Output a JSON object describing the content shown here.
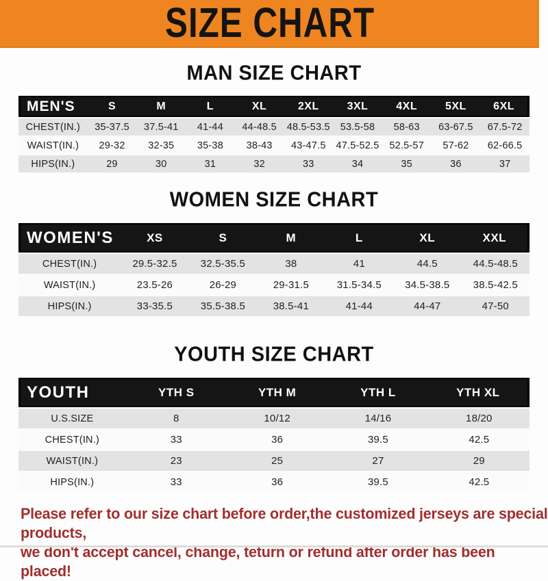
{
  "banner": {
    "title": "SIZE CHART"
  },
  "sections": [
    {
      "heading": "MAN SIZE CHART",
      "table": {
        "header_label": "MEN'S",
        "columns": [
          "S",
          "M",
          "L",
          "XL",
          "2XL",
          "3XL",
          "4XL",
          "5XL",
          "6XL"
        ],
        "rows": [
          {
            "label": "CHEST(IN.)",
            "values": [
              "35-37.5",
              "37.5-41",
              "41-44",
              "44-48.5",
              "48.5-53.5",
              "53.5-58",
              "58-63",
              "63-67.5",
              "67.5-72"
            ]
          },
          {
            "label": "WAIST(IN.)",
            "values": [
              "29-32",
              "32-35",
              "35-38",
              "38-43",
              "43-47.5",
              "47.5-52.5",
              "52.5-57",
              "57-62",
              "62-66.5"
            ]
          },
          {
            "label": "HIPS(IN.)",
            "values": [
              "29",
              "30",
              "31",
              "32",
              "33",
              "34",
              "35",
              "36",
              "37"
            ]
          }
        ]
      }
    },
    {
      "heading": "WOMEN SIZE CHART",
      "table": {
        "header_label": "WOMEN'S",
        "columns": [
          "XS",
          "S",
          "M",
          "L",
          "XL",
          "XXL"
        ],
        "rows": [
          {
            "label": "CHEST(IN.)",
            "values": [
              "29.5-32.5",
              "32.5-35.5",
              "38",
              "41",
              "44.5",
              "44.5-48.5"
            ]
          },
          {
            "label": "WAIST(IN.)",
            "values": [
              "23.5-26",
              "26-29",
              "29-31.5",
              "31.5-34.5",
              "34.5-38.5",
              "38.5-42.5"
            ]
          },
          {
            "label": "HIPS(IN.)",
            "values": [
              "33-35.5",
              "35.5-38.5",
              "38.5-41",
              "41-44",
              "44-47",
              "47-50"
            ]
          }
        ]
      }
    },
    {
      "heading": "YOUTH SIZE CHART",
      "table": {
        "header_label": "YOUTH",
        "columns": [
          "YTH S",
          "YTH M",
          "YTH L",
          "YTH XL"
        ],
        "rows": [
          {
            "label": "U.S.SIZE",
            "values": [
              "8",
              "10/12",
              "14/16",
              "18/20"
            ]
          },
          {
            "label": "CHEST(IN.)",
            "values": [
              "33",
              "36",
              "39.5",
              "42.5"
            ]
          },
          {
            "label": "WAIST(IN.)",
            "values": [
              "23",
              "25",
              "27",
              "29"
            ]
          },
          {
            "label": "HIPS(IN.)",
            "values": [
              "33",
              "36",
              "39.5",
              "42.5"
            ]
          }
        ]
      }
    }
  ],
  "footer_note": {
    "line1": "Please refer to our size chart before order,the customized jerseys are special products,",
    "line2": "we don't accept cancel, change, teturn or refund after order has been placed!"
  },
  "colors": {
    "accent_orange": "#ee8520",
    "band_black": "#151515",
    "row_gray": "#e3e3e3",
    "note_red": "#a22e2e"
  }
}
